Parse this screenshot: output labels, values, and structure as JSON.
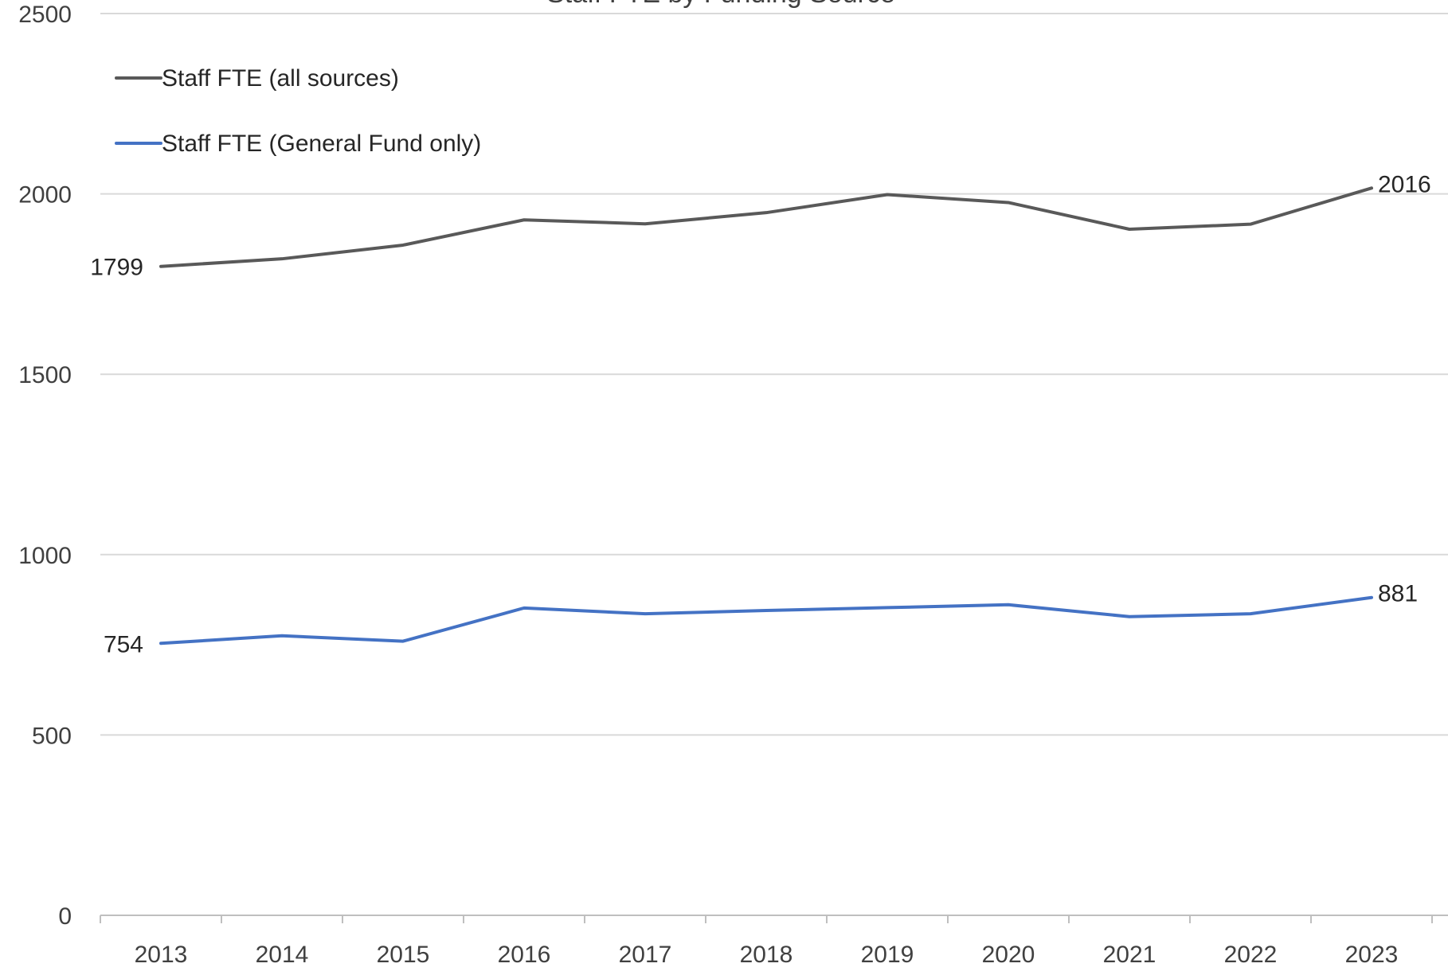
{
  "chart_data": {
    "type": "line",
    "title": "Staff FTE by Funding Source",
    "xlabel": "",
    "ylabel": "",
    "categories": [
      "2013",
      "2014",
      "2015",
      "2016",
      "2017",
      "2018",
      "2019",
      "2020",
      "2021",
      "2022",
      "2023"
    ],
    "ylim": [
      0,
      2500
    ],
    "yticks": [
      0,
      500,
      1000,
      1500,
      2000,
      2500
    ],
    "grid": true,
    "legend_position": "top-left",
    "series": [
      {
        "name": "Staff FTE (all sources)",
        "color": "#595959",
        "values": [
          1799,
          1820,
          1858,
          1928,
          1917,
          1948,
          1998,
          1976,
          1902,
          1916,
          2016
        ],
        "labels": [
          {
            "index": 0,
            "text": "1799",
            "side": "left"
          },
          {
            "index": 10,
            "text": "2016",
            "side": "right"
          }
        ]
      },
      {
        "name": "Staff FTE (General Fund only)",
        "color": "#4472C4",
        "values": [
          754,
          775,
          760,
          852,
          836,
          845,
          853,
          861,
          828,
          836,
          881
        ],
        "labels": [
          {
            "index": 0,
            "text": "754",
            "side": "left"
          },
          {
            "index": 10,
            "text": "881",
            "side": "right"
          }
        ]
      }
    ]
  }
}
